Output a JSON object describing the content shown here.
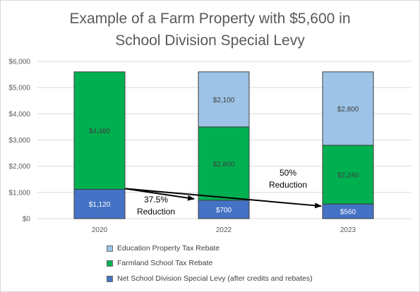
{
  "chart_data": {
    "type": "bar",
    "stacked": true,
    "title": "Example of a Farm Property with $5,600 in School Division Special Levy",
    "title_lines": [
      "Example of a Farm Property with $5,600 in",
      "School Division Special Levy"
    ],
    "categories": [
      "2020",
      "2022",
      "2023"
    ],
    "ylim": [
      0,
      6000
    ],
    "yticks": [
      0,
      1000,
      2000,
      3000,
      4000,
      5000,
      6000
    ],
    "ytick_labels": [
      "$0",
      "$1,000",
      "$2,000",
      "$3,000",
      "$4,000",
      "$5,000",
      "$6,000"
    ],
    "grid": true,
    "legend_position": "bottom",
    "series": [
      {
        "name": "Net School Division Special Levy (after credits and rebates)",
        "values": [
          1120,
          700,
          560
        ],
        "labels": [
          "$1,120",
          "$700",
          "$560"
        ],
        "color": "#4472c4",
        "label_color": "#ffffff"
      },
      {
        "name": "Farmland School Tax Rebate",
        "values": [
          4480,
          2800,
          2240
        ],
        "labels": [
          "$4,480",
          "$2,800",
          "$2,240"
        ],
        "color": "#00b050",
        "label_color": "#404040"
      },
      {
        "name": "Education Property Tax Rebate",
        "values": [
          null,
          2100,
          2800
        ],
        "labels": [
          null,
          "$2,100",
          "$2,800"
        ],
        "color": "#9dc3e6",
        "label_color": "#404040"
      }
    ],
    "annotations": [
      {
        "lines": [
          "37.5%",
          "Reduction"
        ],
        "from_category": "2020",
        "to_category": "2022",
        "from_value": 1120,
        "to_value": 700
      },
      {
        "lines": [
          "50%",
          "Reduction"
        ],
        "from_category": "2020",
        "to_category": "2023",
        "from_value": 1120,
        "to_value": 560
      }
    ]
  }
}
